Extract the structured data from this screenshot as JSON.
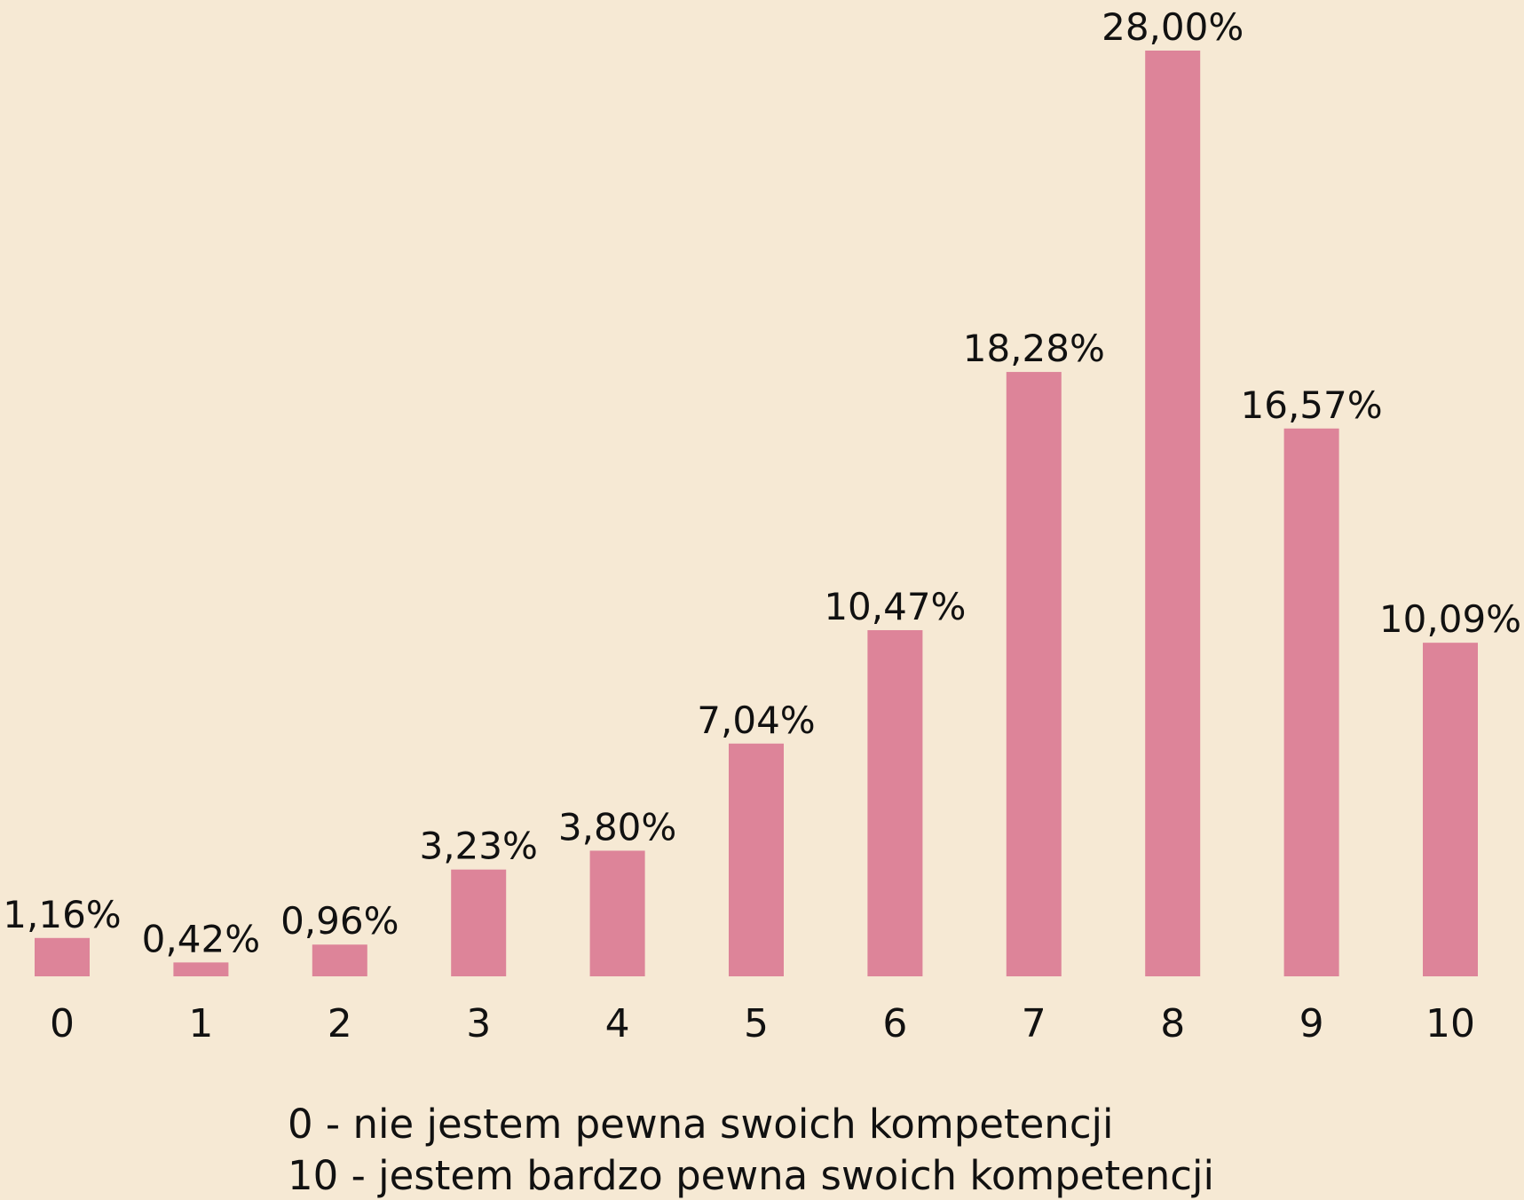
{
  "chart_data": {
    "type": "bar",
    "categories": [
      "0",
      "1",
      "2",
      "3",
      "4",
      "5",
      "6",
      "7",
      "8",
      "9",
      "10"
    ],
    "values": [
      1.16,
      0.42,
      0.96,
      3.23,
      3.8,
      7.04,
      10.47,
      18.28,
      28.0,
      16.57,
      10.09
    ],
    "value_labels": [
      "1,16%",
      "0,42%",
      "0,96%",
      "3,23%",
      "3,80%",
      "7,04%",
      "10,47%",
      "18,28%",
      "28,00%",
      "16,57%",
      "10,09%"
    ],
    "color": "#dd8499",
    "annotations": [
      "0 - nie jestem pewna swoich kompetencji",
      "10 - jestem bardzo pewna swoich kompetencji"
    ]
  }
}
